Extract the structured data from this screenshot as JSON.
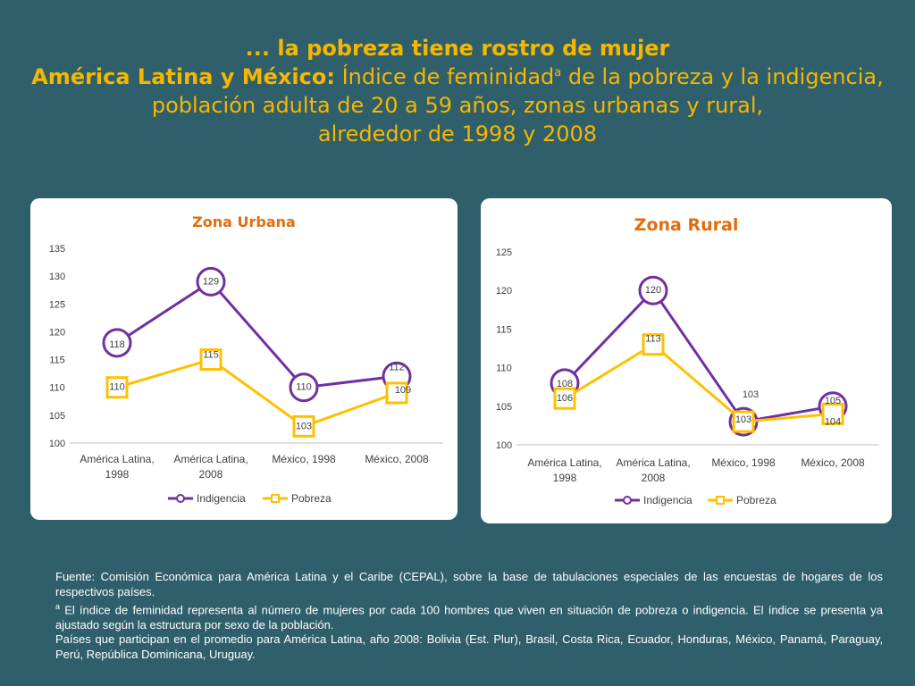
{
  "header": {
    "line1": "... la pobreza tiene rostro de mujer",
    "line2_bold": "América Latina y México:",
    "line2_rest": " Índice de feminidad",
    "line2_sup": "a",
    "line2_end": " de la pobreza y la indigencia,",
    "line3": "población adulta de 20 a 59 años, zonas urbanas y rural,",
    "line4": "alrededor de 1998 y 2008"
  },
  "colors": {
    "background": "#2f5f6b",
    "title": "#f5b700",
    "indigencia": "#7030a0",
    "pobreza": "#ffc000",
    "panel_title": "#e46c0a"
  },
  "chart_data": [
    {
      "type": "line",
      "title": "Zona Urbana",
      "categories": [
        [
          "América Latina,",
          "1998"
        ],
        [
          "América Latina,",
          "2008"
        ],
        [
          "México, 1998"
        ],
        [
          "México, 2008"
        ]
      ],
      "ylim": [
        100,
        135
      ],
      "yticks": [
        100,
        105,
        110,
        115,
        120,
        125,
        130,
        135
      ],
      "series": [
        {
          "name": "Indigencia",
          "values": [
            118,
            129,
            110,
            112
          ],
          "marker": "circle"
        },
        {
          "name": "Pobreza",
          "values": [
            110,
            115,
            103,
            109
          ],
          "marker": "square"
        }
      ],
      "legend": "bottom"
    },
    {
      "type": "line",
      "title": "Zona Rural",
      "categories": [
        [
          "América Latina,",
          "1998"
        ],
        [
          "América Latina,",
          "2008"
        ],
        [
          "México, 1998"
        ],
        [
          "México, 2008"
        ]
      ],
      "ylim": [
        100,
        125
      ],
      "yticks": [
        100,
        105,
        110,
        115,
        120,
        125
      ],
      "series": [
        {
          "name": "Indigencia",
          "values": [
            108,
            120,
            103,
            105
          ],
          "marker": "circle"
        },
        {
          "name": "Pobreza",
          "values": [
            106,
            113,
            103,
            104
          ],
          "marker": "square"
        }
      ],
      "legend": "bottom"
    }
  ],
  "footnote": {
    "source_label": "Fuente:",
    "source_text": " Comisión Económica para América Latina y el Caribe (CEPAL), sobre la base de tabulaciones especiales de las encuestas de hogares de los respectivos países.",
    "note_mark": "a",
    "note_text": " El índice de feminidad representa  al número de mujeres por cada 100 hombres que viven en situación de pobreza o indigencia. El índice se presenta ya ajustado según la estructura por sexo de la población.",
    "countries_text": "Países que participan en el promedio para América Latina, año 2008:  Bolivia (Est. Plur),  Brasil, Costa Rica, Ecuador, Honduras, México, Panamá, Paraguay, Perú, República Dominicana,  Uruguay."
  }
}
